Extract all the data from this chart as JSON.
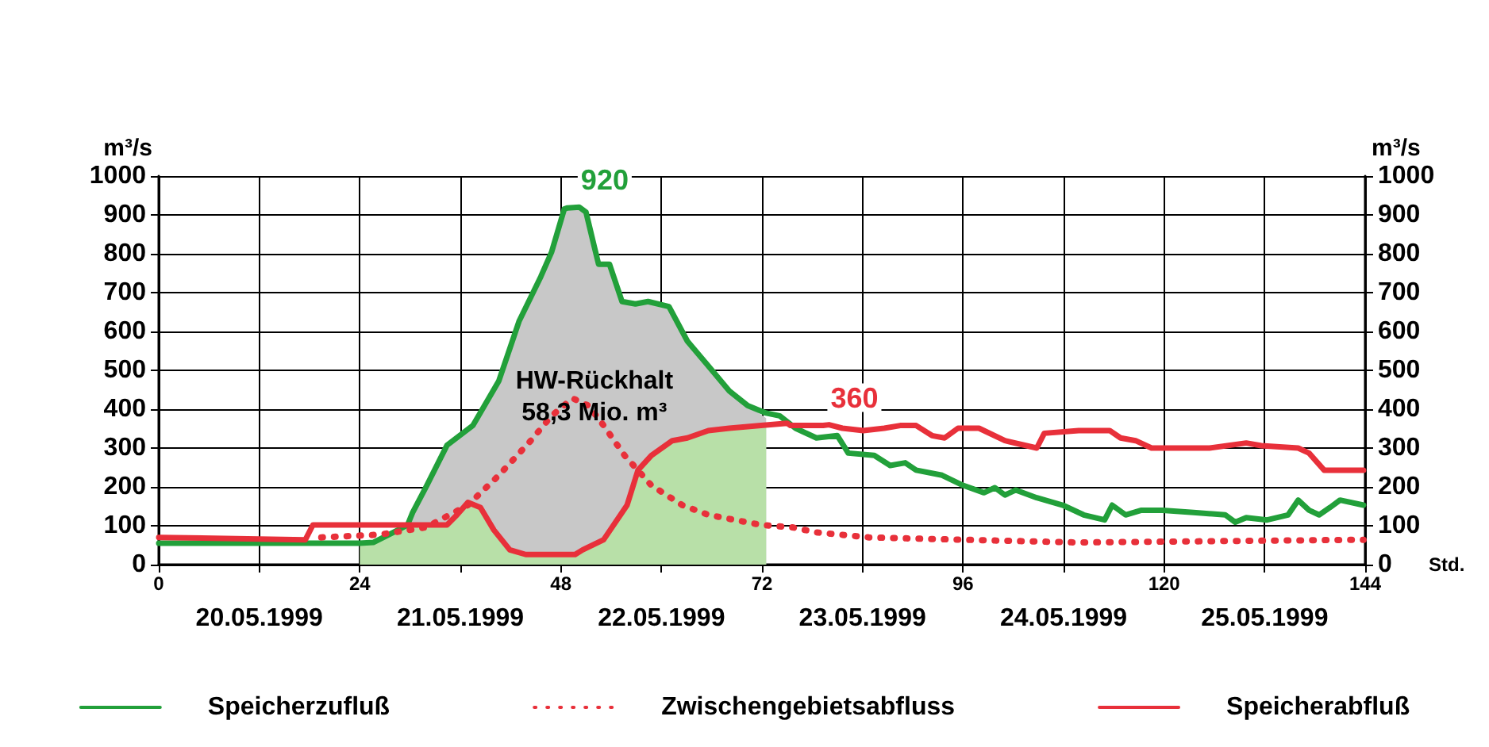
{
  "chart_data": {
    "type": "line",
    "ylabel": "m³/s",
    "y2label": "m³/s",
    "xlabel": "Std.",
    "xlim": [
      0,
      144
    ],
    "xticks": [
      0,
      {
        "value": 12,
        "label": null
      },
      24,
      {
        "value": 36,
        "label": null
      },
      48,
      {
        "value": 60,
        "label": null
      },
      72,
      {
        "value": 84,
        "label": null
      },
      96,
      {
        "value": 108,
        "label": null
      },
      120,
      {
        "value": 132,
        "label": null
      },
      144
    ],
    "x2lim": [
      "1999-05-20T00:00",
      "1999-05-26T00:00"
    ],
    "x2ticks": [
      {
        "value": "1999-05-20T12:00",
        "label": "20.05.1999"
      },
      {
        "value": "1999-05-21T12:00",
        "label": "21.05.1999"
      },
      {
        "value": "1999-05-22T12:00",
        "label": "22.05.1999"
      },
      {
        "value": "1999-05-23T12:00",
        "label": "23.05.1999"
      },
      {
        "value": "1999-05-24T12:00",
        "label": "24.05.1999"
      },
      {
        "value": "1999-05-25T12:00",
        "label": "25.05.1999"
      }
    ],
    "ylim": [
      0,
      1000
    ],
    "yticks": [
      0,
      100,
      200,
      300,
      400,
      500,
      600,
      700,
      800,
      900,
      1000
    ],
    "y2lim": [
      0,
      1000
    ],
    "y2ticks": [
      0,
      100,
      200,
      300,
      400,
      500,
      600,
      700,
      800,
      900,
      1000
    ],
    "grid": true,
    "legend": "bottom",
    "annotations": [
      {
        "text": "HW-Rückhalt\n58,3 Mio. m³",
        "x": 52,
        "y": 430
      }
    ],
    "series": [
      {
        "type": "area",
        "color": "#c8c8c8",
        "x": [
          29.7,
          30.3,
          32,
          34.4,
          37.5,
          40.6,
          43,
          45.6,
          46.9,
          48.4,
          48.8,
          51,
          52,
          52.5,
          53.8,
          55.3,
          56.9,
          58.4,
          60.9,
          63.1,
          65.6,
          68.1,
          70.3,
          72.5
        ],
        "values": [
          102,
          134,
          204,
          307,
          358,
          473,
          626,
          741,
          805,
          920,
          920,
          907,
          817,
          773,
          773,
          677,
          671,
          677,
          664,
          575,
          511,
          447,
          409,
          377
        ]
      },
      {
        "type": "area",
        "color": "#b8e0a8",
        "x": [
          24,
          25.6,
          28,
          29.7,
          34.4,
          35.6,
          36.9,
          38.4,
          40,
          41.9,
          43.8,
          49.7,
          50.6,
          53.1,
          55.9,
          57.2,
          58.8,
          61.3,
          63.1,
          65.6,
          68.1,
          72.5
        ],
        "values": [
          55,
          57,
          83,
          102,
          102,
          128,
          160,
          147,
          89,
          38,
          26,
          26,
          38,
          64,
          153,
          243,
          281,
          319,
          326,
          345,
          351,
          358
        ]
      },
      {
        "name": "Speicherzufluß",
        "color": "#22a03a",
        "line_style": "solid",
        "value_labels": [
          null,
          null,
          null,
          null,
          null,
          null,
          null,
          null,
          null,
          null,
          null,
          null,
          null,
          null,
          null,
          null,
          "920",
          null,
          null,
          null,
          null,
          null,
          null,
          null,
          null,
          null,
          null,
          null,
          null,
          null,
          null,
          null,
          null,
          null,
          null,
          null,
          null,
          null,
          null,
          null,
          null,
          null,
          null,
          null,
          null,
          null,
          null,
          null,
          null,
          null,
          null,
          null,
          null,
          null,
          null,
          null,
          null,
          null,
          null,
          null,
          null,
          null,
          null,
          null,
          null
        ],
        "x": [
          0,
          24,
          25.6,
          28,
          29.7,
          30.3,
          32,
          34.4,
          37.5,
          40.6,
          43,
          45.6,
          46.9,
          48.4,
          48.8,
          49.5,
          50.2,
          51,
          52,
          52.5,
          53.8,
          55.3,
          56.9,
          58.4,
          60.9,
          63.1,
          65.6,
          68.1,
          70.3,
          72.5,
          74.1,
          76,
          78.5,
          81,
          82.3,
          85.4,
          87.3,
          89.1,
          90.4,
          93.5,
          96,
          98.5,
          99.8,
          101,
          102.3,
          104.8,
          107.9,
          110.4,
          112.9,
          113.8,
          115.4,
          117.3,
          119.8,
          123.5,
          127.3,
          128.5,
          129.8,
          132.3,
          134.8,
          136,
          137.3,
          138.5,
          139.8,
          141,
          143.8
        ],
        "values": [
          55,
          55,
          57,
          83,
          102,
          134,
          204,
          307,
          358,
          473,
          626,
          741,
          805,
          915,
          918,
          919,
          920,
          907,
          817,
          773,
          773,
          677,
          671,
          677,
          664,
          575,
          511,
          447,
          409,
          390,
          383,
          351,
          326,
          332,
          287,
          281,
          255,
          262,
          243,
          230,
          204,
          185,
          198,
          179,
          192,
          172,
          153,
          128,
          115,
          153,
          128,
          140,
          140,
          134,
          128,
          109,
          121,
          115,
          128,
          166,
          140,
          128,
          147,
          166,
          153
        ]
      },
      {
        "name": "Zwischengebietsabfluss",
        "color": "#e8303a",
        "line_style": "dotted",
        "x": [
          19.4,
          26.3,
          31.9,
          36.9,
          40.6,
          44.4,
          46.9,
          49.4,
          51.3,
          53.1,
          55.6,
          58.8,
          62.5,
          65.6,
          71.9,
          75.6,
          78.5,
          84.8,
          96,
          109.8,
          143.8
        ],
        "values": [
          70,
          77,
          96,
          153,
          230,
          319,
          383,
          428,
          409,
          358,
          281,
          204,
          153,
          128,
          102,
          96,
          83,
          70,
          64,
          57,
          64
        ]
      },
      {
        "name": "Speicherabfluß",
        "color": "#e8303a",
        "line_style": "solid",
        "value_labels": [
          null,
          null,
          null,
          null,
          null,
          null,
          null,
          null,
          null,
          null,
          null,
          null,
          null,
          null,
          null,
          null,
          null,
          null,
          null,
          null,
          null,
          null,
          null,
          null,
          null,
          "360",
          null,
          null,
          null,
          null,
          null,
          null,
          null,
          null,
          null,
          null,
          null,
          null,
          null,
          null,
          null,
          null,
          null,
          null,
          null,
          null,
          null,
          null,
          null,
          null
        ],
        "x": [
          0,
          17.5,
          18.4,
          34.4,
          35.6,
          36.9,
          38.4,
          40,
          41.9,
          43.8,
          49.7,
          50.6,
          53.1,
          55.9,
          57.2,
          58.8,
          61.3,
          63.1,
          65.6,
          68.1,
          71.9,
          75,
          75.4,
          78.5,
          79.3,
          80,
          81.6,
          84.1,
          86.6,
          88.5,
          90.4,
          92.3,
          93.8,
          95.4,
          97.9,
          101,
          104.8,
          105.7,
          109.8,
          113.5,
          114.8,
          116.6,
          118.5,
          125.4,
          129.8,
          131.6,
          136,
          137.3,
          139.1,
          143.8
        ],
        "values": [
          70,
          64,
          102,
          102,
          128,
          160,
          147,
          89,
          38,
          26,
          26,
          38,
          64,
          153,
          243,
          281,
          319,
          326,
          345,
          351,
          358,
          364,
          358,
          358,
          358,
          360,
          351,
          345,
          351,
          358,
          358,
          332,
          326,
          351,
          351,
          319,
          300,
          338,
          345,
          345,
          326,
          319,
          300,
          300,
          313,
          306,
          300,
          287,
          243,
          243
        ]
      }
    ]
  }
}
